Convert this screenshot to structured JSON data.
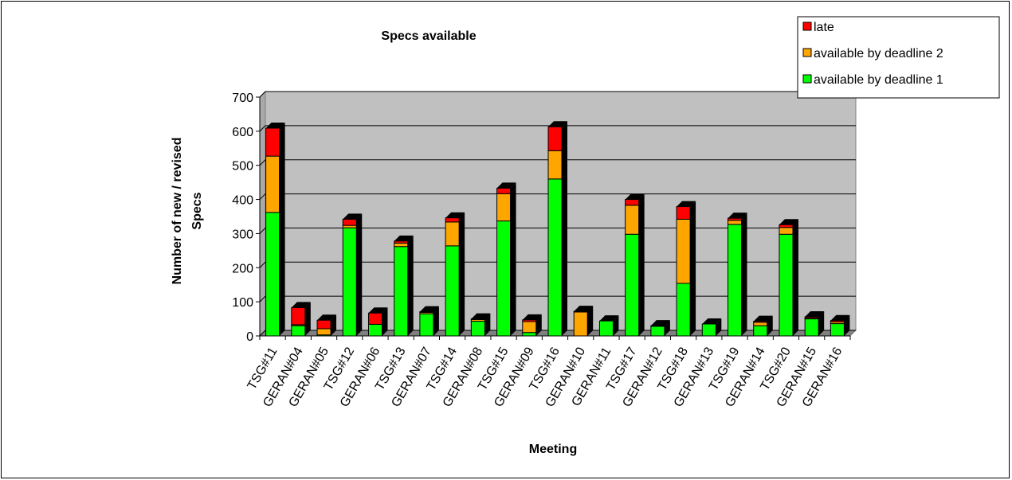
{
  "chart_data": {
    "type": "bar",
    "stacked": true,
    "title": "Specs available",
    "xlabel": "Meeting",
    "ylabel": "Number of new / revised Specs",
    "ylim": [
      0,
      700
    ],
    "yticks": [
      0,
      100,
      200,
      300,
      400,
      500,
      600,
      700
    ],
    "grid": true,
    "legend_position": "top-right",
    "categories": [
      "TSG#11",
      "GERAN#04",
      "GERAN#05",
      "TSG#12",
      "GERAN#06",
      "TSG#13",
      "GERAN#07",
      "TSG#14",
      "GERAN#08",
      "TSG#15",
      "GERAN#09",
      "TSG#16",
      "GERAN#10",
      "GERAN#11",
      "TSG#17",
      "GERAN#12",
      "TSG#18",
      "GERAN#13",
      "TSG#19",
      "GERAN#14",
      "TSG#20",
      "GERAN#15",
      "GERAN#16"
    ],
    "series": [
      {
        "name": "available by deadline 1",
        "color": "#00ff00",
        "values": [
          362,
          30,
          3,
          317,
          34,
          262,
          65,
          264,
          43,
          337,
          10,
          460,
          0,
          44,
          298,
          28,
          154,
          35,
          327,
          30,
          298,
          50,
          36
        ]
      },
      {
        "name": "available by deadline 2",
        "color": "#ffa500",
        "values": [
          165,
          3,
          18,
          7,
          0,
          10,
          4,
          70,
          5,
          80,
          32,
          83,
          70,
          0,
          85,
          0,
          188,
          0,
          12,
          10,
          20,
          3,
          5
        ]
      },
      {
        "name": "late",
        "color": "#ff0000",
        "values": [
          82,
          50,
          25,
          18,
          33,
          6,
          2,
          12,
          2,
          16,
          5,
          70,
          2,
          0,
          17,
          2,
          37,
          0,
          6,
          3,
          8,
          3,
          4
        ]
      }
    ],
    "legend_order": [
      "late",
      "available by deadline 2",
      "available by deadline 1"
    ]
  }
}
